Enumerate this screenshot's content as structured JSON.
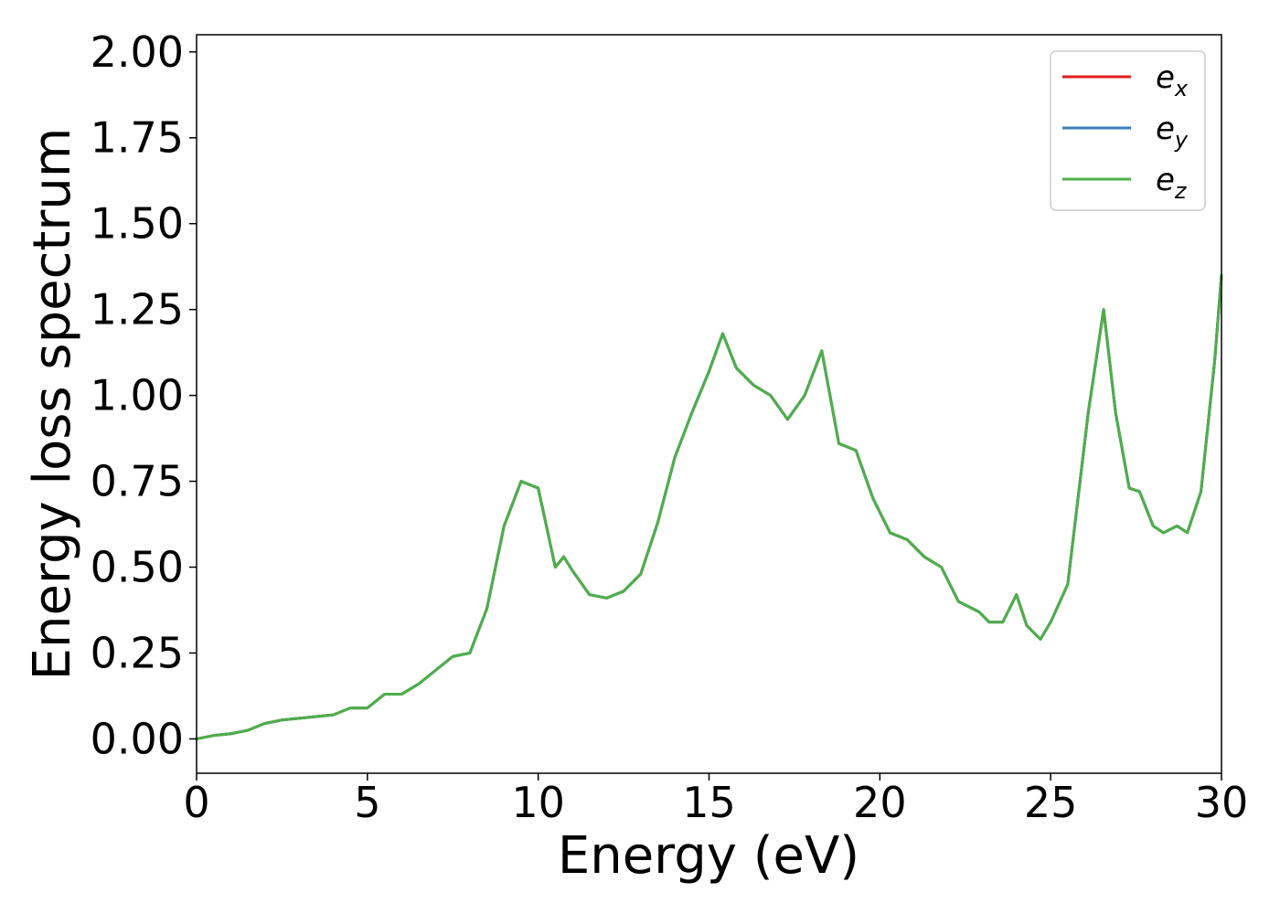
{
  "chart_data": {
    "type": "line",
    "title": "",
    "xlabel": "Energy (eV)",
    "ylabel": "Energy loss spectrum",
    "xlim": [
      0,
      30
    ],
    "ylim": [
      -0.1,
      2.05
    ],
    "xticks": [
      0,
      5,
      10,
      15,
      20,
      25,
      30
    ],
    "xtick_labels": [
      "0",
      "5",
      "10",
      "15",
      "20",
      "25",
      "30"
    ],
    "yticks": [
      0.0,
      0.25,
      0.5,
      0.75,
      1.0,
      1.25,
      1.5,
      1.75,
      2.0
    ],
    "ytick_labels": [
      "0.00",
      "0.25",
      "0.50",
      "0.75",
      "1.00",
      "1.25",
      "1.50",
      "1.75",
      "2.00"
    ],
    "grid": false,
    "legend_position": "top-right",
    "x": [
      0,
      0.5,
      1.0,
      1.5,
      2.0,
      2.5,
      3.0,
      3.5,
      4.0,
      4.5,
      5.0,
      5.5,
      6.0,
      6.5,
      7.0,
      7.5,
      8.0,
      8.5,
      9.0,
      9.5,
      10.0,
      10.5,
      10.75,
      11.0,
      11.5,
      12.0,
      12.5,
      13.0,
      13.5,
      14.0,
      14.5,
      15.0,
      15.4,
      15.8,
      16.3,
      16.8,
      17.3,
      17.8,
      18.3,
      18.8,
      19.3,
      19.8,
      20.3,
      20.8,
      21.3,
      21.8,
      22.3,
      22.9,
      23.2,
      23.6,
      24.0,
      24.3,
      24.7,
      25.0,
      25.5,
      25.8,
      26.1,
      26.55,
      26.9,
      27.3,
      27.6,
      28.0,
      28.3,
      28.7,
      29.0,
      29.4,
      29.8,
      30.0
    ],
    "series": [
      {
        "name": "e_x",
        "label_base": "e",
        "label_sub": "x",
        "color": "#e41a1c",
        "values": [
          0.0,
          0.01,
          0.015,
          0.025,
          0.045,
          0.055,
          0.06,
          0.065,
          0.07,
          0.09,
          0.09,
          0.13,
          0.13,
          0.16,
          0.2,
          0.24,
          0.25,
          0.38,
          0.62,
          0.75,
          0.73,
          0.5,
          0.53,
          0.49,
          0.42,
          0.41,
          0.43,
          0.48,
          0.63,
          0.82,
          0.95,
          1.07,
          1.18,
          1.08,
          1.03,
          1.0,
          0.93,
          1.0,
          1.13,
          0.86,
          0.84,
          0.7,
          0.6,
          0.58,
          0.53,
          0.5,
          0.4,
          0.37,
          0.34,
          0.34,
          0.42,
          0.33,
          0.29,
          0.34,
          0.45,
          0.7,
          0.95,
          1.25,
          0.95,
          0.73,
          0.72,
          0.62,
          0.6,
          0.62,
          0.6,
          0.72,
          1.1,
          1.35
        ]
      },
      {
        "name": "e_y",
        "label_base": "e",
        "label_sub": "y",
        "color": "#377eb8",
        "values": [
          0.0,
          0.01,
          0.015,
          0.025,
          0.045,
          0.055,
          0.06,
          0.065,
          0.07,
          0.09,
          0.09,
          0.13,
          0.13,
          0.16,
          0.2,
          0.24,
          0.25,
          0.38,
          0.62,
          0.75,
          0.73,
          0.5,
          0.53,
          0.49,
          0.42,
          0.41,
          0.43,
          0.48,
          0.63,
          0.82,
          0.95,
          1.07,
          1.18,
          1.08,
          1.03,
          1.0,
          0.93,
          1.0,
          1.13,
          0.86,
          0.84,
          0.7,
          0.6,
          0.58,
          0.53,
          0.5,
          0.4,
          0.37,
          0.34,
          0.34,
          0.42,
          0.33,
          0.29,
          0.34,
          0.45,
          0.7,
          0.95,
          1.25,
          0.95,
          0.73,
          0.72,
          0.62,
          0.6,
          0.62,
          0.6,
          0.72,
          1.1,
          1.35
        ]
      },
      {
        "name": "e_z",
        "label_base": "e",
        "label_sub": "z",
        "color": "#4daf4a",
        "values": [
          0.0,
          0.01,
          0.015,
          0.025,
          0.045,
          0.055,
          0.06,
          0.065,
          0.07,
          0.09,
          0.09,
          0.13,
          0.13,
          0.16,
          0.2,
          0.24,
          0.25,
          0.38,
          0.62,
          0.75,
          0.73,
          0.5,
          0.53,
          0.49,
          0.42,
          0.41,
          0.43,
          0.48,
          0.63,
          0.82,
          0.95,
          1.07,
          1.18,
          1.08,
          1.03,
          1.0,
          0.93,
          1.0,
          1.13,
          0.86,
          0.84,
          0.7,
          0.6,
          0.58,
          0.53,
          0.5,
          0.4,
          0.37,
          0.34,
          0.34,
          0.42,
          0.33,
          0.29,
          0.34,
          0.45,
          0.7,
          0.95,
          1.25,
          0.95,
          0.73,
          0.72,
          0.62,
          0.6,
          0.62,
          0.6,
          0.72,
          1.1,
          1.35
        ]
      }
    ]
  }
}
